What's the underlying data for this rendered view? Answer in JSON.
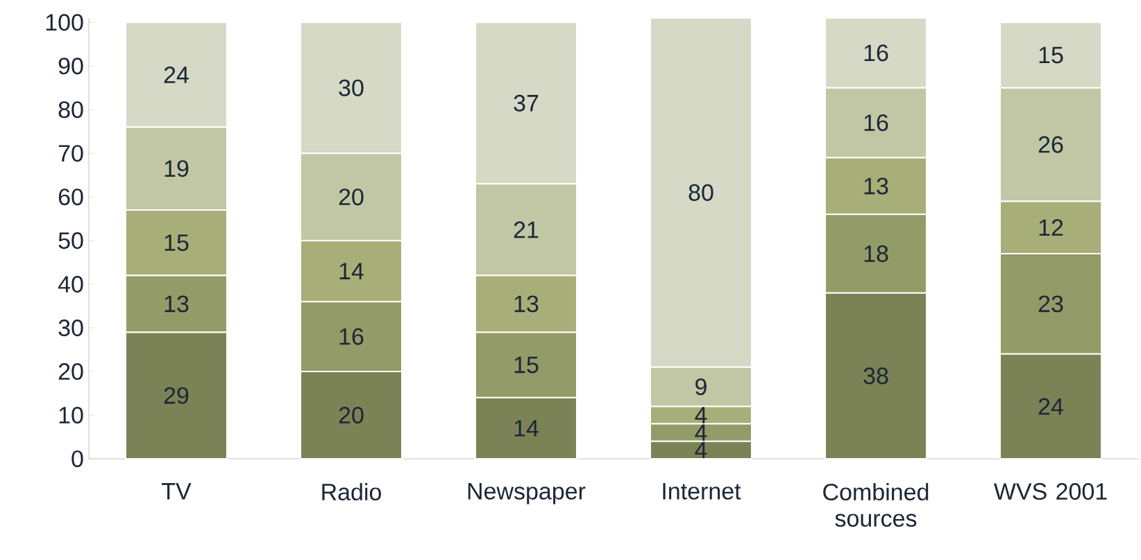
{
  "chart_data": {
    "type": "bar",
    "stacked": true,
    "data_labels": true,
    "categories": [
      "TV",
      "Radio",
      "Newspaper",
      "Internet",
      "Combined sources",
      "WVS 2001"
    ],
    "ylim": [
      0,
      101
    ],
    "yticks": [
      0,
      10,
      20,
      30,
      40,
      50,
      60,
      70,
      80,
      90,
      100
    ],
    "grid": false,
    "series": [
      {
        "color": "#7b8356",
        "values": [
          29,
          20,
          14,
          4,
          38,
          24
        ]
      },
      {
        "color": "#939b68",
        "values": [
          13,
          16,
          15,
          4,
          18,
          23
        ]
      },
      {
        "color": "#a8ae78",
        "values": [
          15,
          14,
          13,
          4,
          13,
          12
        ]
      },
      {
        "color": "#c1c6a4",
        "values": [
          19,
          20,
          21,
          9,
          16,
          26
        ]
      },
      {
        "color": "#d5d9c5",
        "values": [
          24,
          30,
          37,
          80,
          16,
          15
        ]
      }
    ]
  }
}
